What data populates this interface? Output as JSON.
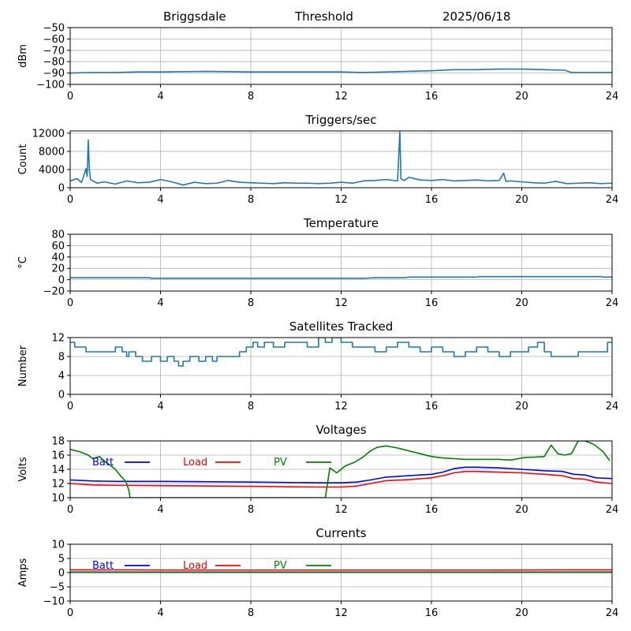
{
  "header": {
    "station": "Briggsdale",
    "mode": "Threshold",
    "date": "2025/06/18"
  },
  "chart_data": [
    {
      "type": "line",
      "title": "",
      "ylabel": "dBm",
      "xlim": [
        0,
        24
      ],
      "ylim": [
        -100,
        -50
      ],
      "x_ticks": [
        "0",
        "4",
        "8",
        "12",
        "16",
        "20",
        "24"
      ],
      "y_ticks": [
        "−50",
        "−60",
        "−70",
        "−80",
        "−90",
        "−100"
      ],
      "y_tick_values": [
        -50,
        -60,
        -70,
        -80,
        -90,
        -100
      ],
      "grid": true,
      "series": [
        {
          "color": "#1f77b4",
          "x": [
            0,
            1,
            2,
            3,
            4,
            6,
            8,
            10,
            12,
            13,
            14,
            15,
            16,
            17,
            18,
            19,
            20,
            21,
            21.9,
            22.2,
            23,
            24
          ],
          "values": [
            -90,
            -89.5,
            -89.5,
            -89,
            -89,
            -88.5,
            -89,
            -89,
            -89,
            -89.5,
            -89,
            -88.5,
            -88,
            -87,
            -87,
            -86.5,
            -86.5,
            -87,
            -87.5,
            -89.5,
            -89.5,
            -89.5
          ]
        }
      ]
    },
    {
      "type": "line",
      "title": "Triggers/sec",
      "ylabel": "Count",
      "xlim": [
        0,
        24
      ],
      "ylim": [
        0,
        12500
      ],
      "x_ticks": [
        "0",
        "4",
        "8",
        "12",
        "16",
        "20",
        "24"
      ],
      "y_ticks": [
        "0",
        "4000",
        "8000",
        "12000"
      ],
      "y_tick_values": [
        0,
        4000,
        8000,
        12000
      ],
      "grid": true,
      "series": [
        {
          "color": "#1f77b4",
          "x": [
            0,
            0.3,
            0.5,
            0.6,
            0.7,
            0.75,
            0.8,
            0.85,
            0.9,
            1.0,
            1.2,
            1.5,
            2,
            2.5,
            3,
            3.5,
            4,
            4.5,
            5,
            5.5,
            6,
            6.5,
            7,
            7.5,
            8,
            8.5,
            9,
            9.5,
            10,
            10.5,
            11,
            11.5,
            12,
            12.5,
            13,
            13.5,
            14,
            14.5,
            14.6,
            14.65,
            14.7,
            14.8,
            15,
            15.5,
            16,
            16.5,
            17,
            17.5,
            18,
            18.5,
            19,
            19.2,
            19.3,
            19.5,
            20,
            20.5,
            21,
            21.5,
            22,
            22.5,
            23,
            23.5,
            24
          ],
          "values": [
            1500,
            2000,
            1200,
            2600,
            4200,
            2500,
            10500,
            3800,
            1800,
            1500,
            1000,
            1300,
            800,
            1500,
            1100,
            1200,
            1800,
            1300,
            600,
            1200,
            900,
            1000,
            1600,
            1200,
            1100,
            1000,
            900,
            1100,
            1000,
            1000,
            900,
            1000,
            1200,
            1000,
            1500,
            1600,
            1800,
            1500,
            12300,
            2000,
            1800,
            1600,
            2300,
            1700,
            1600,
            1800,
            1500,
            1600,
            1700,
            1500,
            1600,
            3200,
            1400,
            1500,
            1300,
            1100,
            1000,
            1400,
            900,
            1000,
            1100,
            900,
            1000
          ]
        }
      ]
    },
    {
      "type": "line",
      "title": "Temperature",
      "ylabel": "°C",
      "xlim": [
        0,
        24
      ],
      "ylim": [
        -20,
        80
      ],
      "x_ticks": [
        "0",
        "4",
        "8",
        "12",
        "16",
        "20",
        "24"
      ],
      "y_ticks": [
        "80",
        "60",
        "40",
        "20",
        "0",
        "−20"
      ],
      "y_tick_values": [
        80,
        60,
        40,
        20,
        0,
        -20
      ],
      "grid": true,
      "series": [
        {
          "color": "#1f77b4",
          "x": [
            0,
            3.5,
            3.6,
            8,
            13,
            13.5,
            14.8,
            15,
            18,
            18.1,
            23.5,
            23.6,
            24
          ],
          "values": [
            3.5,
            3.5,
            2.5,
            2.5,
            2.5,
            3.5,
            3.5,
            4.5,
            4.5,
            5.5,
            5.5,
            4.5,
            4.5
          ]
        }
      ]
    },
    {
      "type": "line",
      "title": "Satellites Tracked",
      "ylabel": "Number",
      "xlim": [
        0,
        24
      ],
      "ylim": [
        0,
        12
      ],
      "x_ticks": [
        "0",
        "4",
        "8",
        "12",
        "16",
        "20",
        "24"
      ],
      "y_ticks": [
        "0",
        "4",
        "8",
        "12"
      ],
      "y_tick_values": [
        0,
        4,
        8,
        12
      ],
      "grid": true,
      "series": [
        {
          "color": "#1f77b4",
          "step": true,
          "x": [
            0,
            0.2,
            0.7,
            1.0,
            2.0,
            2.3,
            2.5,
            2.6,
            2.9,
            3.0,
            3.2,
            3.5,
            3.6,
            4.0,
            4.3,
            4.6,
            4.8,
            5.0,
            5.3,
            5.7,
            6.0,
            6.3,
            6.5,
            6.8,
            7.5,
            7.8,
            8.1,
            8.3,
            8.6,
            9.0,
            9.5,
            10.0,
            10.5,
            11.0,
            11.3,
            11.6,
            12.0,
            12.5,
            13.0,
            13.5,
            14.0,
            14.5,
            15.0,
            15.5,
            16.0,
            16.5,
            17.0,
            17.5,
            18.0,
            18.5,
            19.0,
            19.5,
            20.0,
            20.3,
            20.7,
            21.0,
            21.3,
            22.0,
            22.5,
            23.0,
            23.4,
            23.8,
            24
          ],
          "values": [
            11,
            10,
            9,
            9,
            10,
            9,
            8,
            9,
            8,
            8,
            7,
            7,
            8,
            7,
            8,
            7,
            6,
            7,
            8,
            7,
            8,
            7,
            8,
            8,
            9,
            10,
            11,
            10,
            11,
            10,
            11,
            11,
            10,
            12,
            11,
            12,
            11,
            10,
            10,
            9,
            10,
            11,
            10,
            9,
            10,
            9,
            8,
            9,
            10,
            9,
            8,
            9,
            9,
            10,
            11,
            9,
            8,
            8,
            9,
            9,
            9,
            11,
            11
          ]
        }
      ]
    },
    {
      "type": "line",
      "title": "Voltages",
      "ylabel": "Volts",
      "xlim": [
        0,
        24
      ],
      "ylim": [
        10,
        18
      ],
      "x_ticks": [
        "0",
        "4",
        "8",
        "12",
        "16",
        "20",
        "24"
      ],
      "y_ticks": [
        "10",
        "12",
        "14",
        "16",
        "18"
      ],
      "y_tick_values": [
        10,
        12,
        14,
        16,
        18
      ],
      "grid": true,
      "legend": [
        {
          "label": "Batt",
          "color": "#0000ff"
        },
        {
          "label": "Load",
          "color": "#ff0000"
        },
        {
          "label": "PV",
          "color": "#008000"
        }
      ],
      "series": [
        {
          "name": "Batt",
          "color": "#0000ff",
          "x": [
            0,
            1,
            2,
            4,
            8,
            11,
            12,
            12.7,
            13.3,
            14,
            15,
            16,
            16.5,
            17,
            17.5,
            18,
            19,
            20,
            21,
            21.8,
            22.3,
            22.8,
            23.3,
            24
          ],
          "values": [
            12.5,
            12.35,
            12.3,
            12.3,
            12.2,
            12.1,
            12.1,
            12.2,
            12.5,
            12.9,
            13.1,
            13.3,
            13.6,
            14.1,
            14.3,
            14.3,
            14.2,
            14.0,
            13.8,
            13.7,
            13.3,
            13.2,
            12.8,
            12.7
          ]
        },
        {
          "name": "Load",
          "color": "#ff0000",
          "x": [
            0,
            1,
            2,
            4,
            8,
            11,
            12,
            12.7,
            13.3,
            14,
            15,
            16,
            16.5,
            17,
            17.5,
            18,
            19,
            20,
            21,
            21.8,
            22.3,
            22.8,
            23.3,
            24
          ],
          "values": [
            12.0,
            11.8,
            11.75,
            11.7,
            11.6,
            11.5,
            11.5,
            11.65,
            12.0,
            12.4,
            12.55,
            12.8,
            13.1,
            13.5,
            13.7,
            13.7,
            13.6,
            13.5,
            13.3,
            13.1,
            12.7,
            12.6,
            12.2,
            12.0
          ]
        },
        {
          "name": "PV",
          "color": "#008000",
          "x": [
            0,
            0.4,
            0.8,
            1.0,
            1.3,
            1.5,
            1.8,
            2.0,
            2.2,
            2.4,
            2.5,
            2.6,
            2.65,
            11.3,
            11.5,
            11.8,
            12.2,
            12.6,
            13.0,
            13.3,
            13.6,
            14.0,
            14.5,
            15.0,
            15.5,
            16.0,
            16.5,
            17.0,
            17.5,
            18.0,
            18.5,
            19.0,
            19.5,
            20.0,
            20.3,
            20.5,
            21.0,
            21.3,
            21.6,
            21.9,
            22.2,
            22.5,
            22.8,
            23.2,
            23.6,
            23.9
          ],
          "values": [
            16.8,
            16.5,
            16.0,
            15.5,
            15.8,
            15.2,
            14.5,
            14.0,
            13.2,
            12.5,
            12.0,
            11.0,
            10.0,
            10.0,
            14.2,
            13.5,
            14.5,
            15.0,
            15.8,
            16.6,
            17.1,
            17.3,
            17.0,
            16.6,
            16.2,
            15.8,
            15.6,
            15.5,
            15.4,
            15.4,
            15.4,
            15.4,
            15.3,
            15.6,
            15.7,
            15.7,
            15.8,
            17.4,
            16.2,
            16.0,
            16.2,
            18.0,
            18.0,
            17.5,
            16.5,
            15.2
          ]
        }
      ]
    },
    {
      "type": "line",
      "title": "Currents",
      "ylabel": "Amps",
      "xlim": [
        0,
        24
      ],
      "ylim": [
        -10,
        10
      ],
      "x_ticks": [
        "0",
        "4",
        "8",
        "12",
        "16",
        "20",
        "24"
      ],
      "y_ticks": [
        "10",
        "5",
        "0",
        "−5",
        "−10"
      ],
      "y_tick_values": [
        10,
        5,
        0,
        -5,
        -10
      ],
      "grid": true,
      "legend": [
        {
          "label": "Batt",
          "color": "#0000ff"
        },
        {
          "label": "Load",
          "color": "#ff0000"
        },
        {
          "label": "PV",
          "color": "#008000"
        }
      ],
      "series": [
        {
          "name": "Batt",
          "color": "#0000ff",
          "x": [
            0,
            24
          ],
          "values": [
            0.2,
            0.2
          ]
        },
        {
          "name": "Load",
          "color": "#ff0000",
          "x": [
            0,
            2,
            6,
            12,
            18,
            22,
            24
          ],
          "values": [
            1.0,
            1.0,
            0.9,
            0.9,
            0.9,
            1.0,
            1.0
          ]
        },
        {
          "name": "PV",
          "color": "#008000",
          "x": [
            0,
            24
          ],
          "values": [
            0.1,
            0.1
          ]
        }
      ]
    }
  ]
}
